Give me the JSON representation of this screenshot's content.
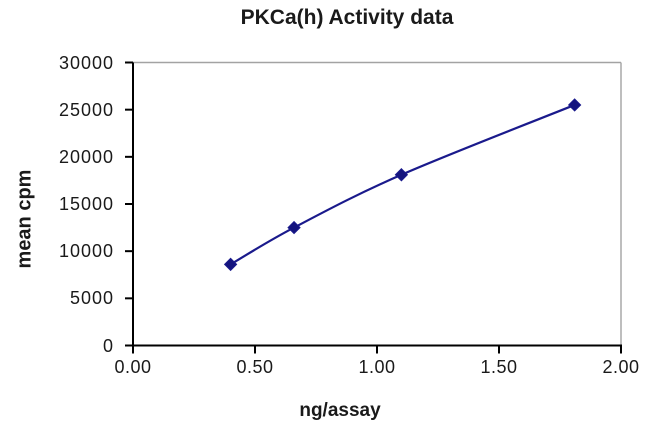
{
  "chart_data": {
    "type": "line",
    "title": "PKCa(h) Activity data",
    "xlabel": "ng/assay",
    "ylabel": "mean cpm",
    "xlim": [
      0,
      2
    ],
    "ylim": [
      0,
      30000
    ],
    "grid": false,
    "legend_position": "none",
    "marker": "diamond",
    "series": [
      {
        "name": "PKCa(h) activity",
        "x": [
          0.4,
          0.66,
          1.1,
          1.81
        ],
        "y": [
          8600,
          12500,
          18100,
          25500
        ]
      }
    ],
    "x_ticks": [
      {
        "value": 0.0,
        "label": "0.00"
      },
      {
        "value": 0.5,
        "label": "0.50"
      },
      {
        "value": 1.0,
        "label": "1.00"
      },
      {
        "value": 1.5,
        "label": "1.50"
      },
      {
        "value": 2.0,
        "label": "2.00"
      }
    ],
    "y_ticks": [
      {
        "value": 0,
        "label": "0"
      },
      {
        "value": 5000,
        "label": "5000"
      },
      {
        "value": 10000,
        "label": "10000"
      },
      {
        "value": 15000,
        "label": "15000"
      },
      {
        "value": 20000,
        "label": "20000"
      },
      {
        "value": 25000,
        "label": "25000"
      },
      {
        "value": 30000,
        "label": "30000"
      }
    ]
  },
  "colors": {
    "series": "#1a1a8c",
    "marker_fill": "#14147e",
    "axis": "#000000",
    "frame": "#a3a3a3",
    "text": "#1a1a1a",
    "background": "#ffffff"
  }
}
